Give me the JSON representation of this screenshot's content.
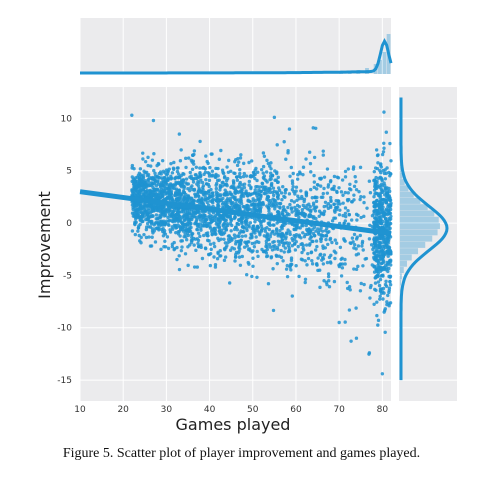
{
  "chart_data": {
    "type": "scatter",
    "xlabel": "Games played",
    "ylabel": "Improvement",
    "xlim": [
      10,
      82
    ],
    "ylim": [
      -17,
      13
    ],
    "x_ticks": [
      10,
      20,
      30,
      40,
      50,
      60,
      70,
      80
    ],
    "y_ticks": [
      10,
      5,
      0,
      -5,
      -10,
      -15
    ],
    "grid": true,
    "marginal_top": "kde + histogram of games played",
    "marginal_right": "kde + histogram of improvement",
    "regression_line": {
      "x": [
        10,
        82
      ],
      "y": [
        3.0,
        -1.0
      ]
    },
    "colors": {
      "points": "#1f93d1",
      "panel": "#ebebed",
      "grid": "#ffffff"
    },
    "points_sample": [
      {
        "x": 22,
        "y": 10.3
      },
      {
        "x": 27,
        "y": 9.8
      },
      {
        "x": 33,
        "y": 8.5
      },
      {
        "x": 55,
        "y": 10.1
      },
      {
        "x": 64,
        "y": 9.1
      },
      {
        "x": 80,
        "y": -14.4
      },
      {
        "x": 77,
        "y": -12.4
      },
      {
        "x": 74,
        "y": -11.0
      },
      {
        "x": 70,
        "y": -9.5
      }
    ]
  },
  "caption": "Figure 5. Scatter plot of player improvement and games played."
}
